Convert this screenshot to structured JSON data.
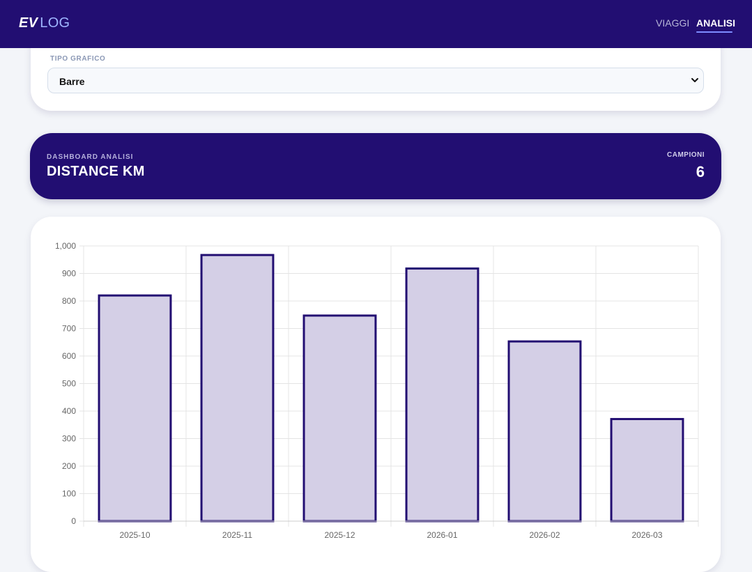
{
  "brand": {
    "ev": "EV",
    "log": "LOG"
  },
  "nav": {
    "items": [
      {
        "label": "VIAGGI",
        "active": false
      },
      {
        "label": "ANALISI",
        "active": true
      }
    ]
  },
  "filters": {
    "chart_type_label": "TIPO GRAFICO",
    "chart_type_value": "Barre",
    "chevron_icon": "chevron-down-icon"
  },
  "dashboard": {
    "kicker": "DASHBOARD ANALISI",
    "title": "DISTANCE KM",
    "samples_label": "CAMPIONI",
    "samples_value": "6"
  },
  "colors": {
    "brand": "#220e72",
    "bar_fill": "#d4cfe6",
    "bar_stroke": "#220e72",
    "accent": "#7d8cff"
  },
  "chart_data": {
    "type": "bar",
    "categories": [
      "2025-10",
      "2025-11",
      "2025-12",
      "2026-01",
      "2026-02",
      "2026-03"
    ],
    "values": [
      820,
      967,
      747,
      918,
      653,
      371
    ],
    "ylim": [
      0,
      1000
    ],
    "yticks": [
      0,
      100,
      200,
      300,
      400,
      500,
      600,
      700,
      800,
      900,
      1000
    ],
    "ytick_labels": [
      "0",
      "100",
      "200",
      "300",
      "400",
      "500",
      "600",
      "700",
      "800",
      "900",
      "1,000"
    ],
    "grid": true,
    "title": "",
    "xlabel": "",
    "ylabel": ""
  }
}
